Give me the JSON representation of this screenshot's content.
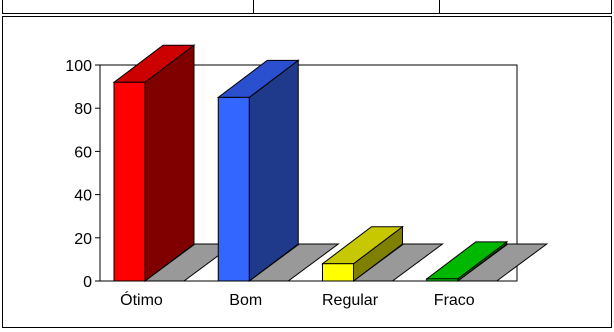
{
  "chart_data": {
    "type": "bar",
    "categories": [
      "Ótimo",
      "Bom",
      "Regular",
      "Fraco"
    ],
    "values": [
      92,
      85,
      8,
      1
    ],
    "ylim": [
      0,
      100
    ],
    "yticks": [
      0,
      20,
      40,
      60,
      80,
      100
    ],
    "grid": false,
    "legend": "none",
    "colors": {
      "bars": [
        {
          "front": "#ff0000",
          "side": "#800000",
          "top": "#cc0000"
        },
        {
          "front": "#3366ff",
          "side": "#1f3a8a",
          "top": "#2a4fcf"
        },
        {
          "front": "#ffff00",
          "side": "#808000",
          "top": "#c8c800"
        },
        {
          "front": "#00cc00",
          "side": "#007a00",
          "top": "#00b800"
        }
      ],
      "floor": "#999999",
      "floor_stroke": "#000000"
    }
  }
}
